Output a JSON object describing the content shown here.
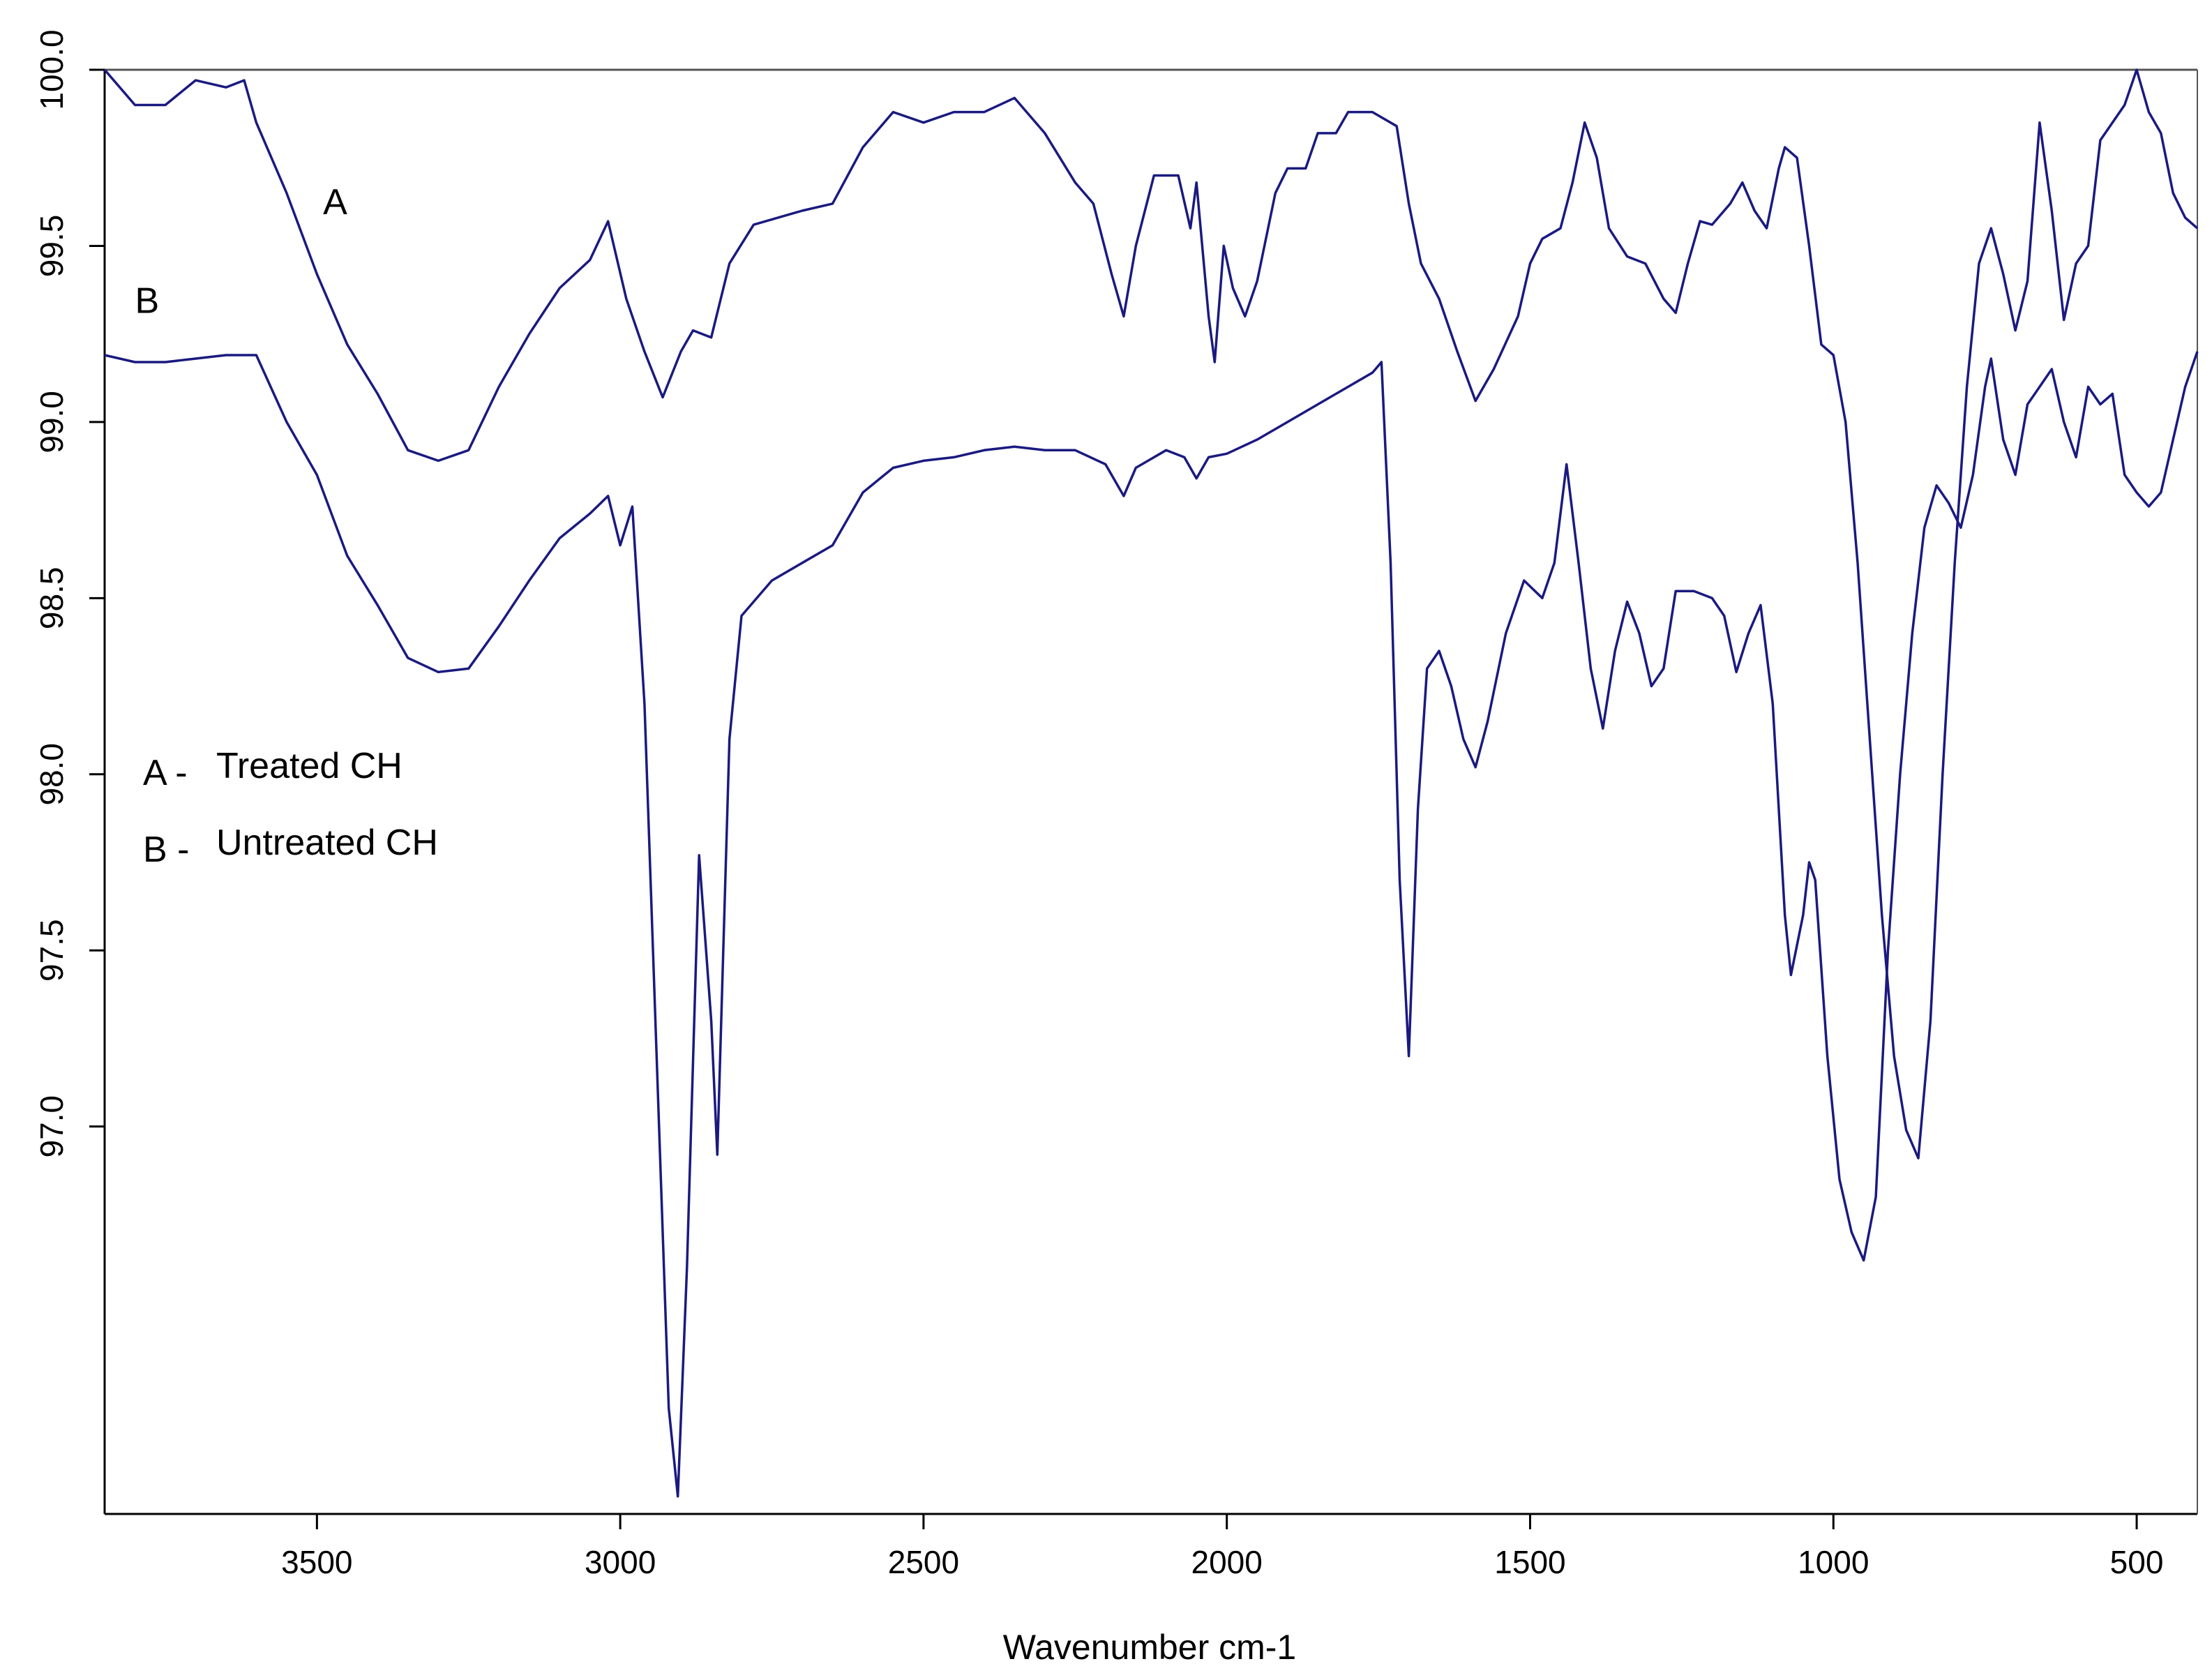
{
  "chart_data": {
    "type": "line",
    "xlabel": "Wavenumber cm-1",
    "ylabel": "",
    "xlim": [
      3850,
      400
    ],
    "ylim": [
      95.9,
      100.0
    ],
    "x_ticks": [
      3500,
      3000,
      2500,
      2000,
      1500,
      1000,
      500
    ],
    "y_ticks": [
      100.0,
      99.5,
      99.0,
      98.5,
      98.0,
      97.5,
      97.0
    ],
    "y_tick_labels": [
      "100.0",
      "99.5",
      "99.0",
      "98.5",
      "98.0",
      "97.5",
      "97.0"
    ],
    "top_reference_line": 100.0,
    "line_color": "#1a1a80",
    "annotations": [
      {
        "text": "A",
        "x": 3470,
        "y": 99.59
      },
      {
        "text": "B",
        "x": 3780,
        "y": 99.31
      }
    ],
    "legend": {
      "placement": "left-center",
      "entries": [
        {
          "key": "A -",
          "label": "Treated CH"
        },
        {
          "key": "B -",
          "label": "Untreated CH"
        }
      ]
    },
    "series": [
      {
        "key": "A",
        "color": "#1a1a80",
        "points": [
          [
            3850,
            100.0
          ],
          [
            3800,
            99.9
          ],
          [
            3750,
            99.9
          ],
          [
            3700,
            99.97
          ],
          [
            3650,
            99.95
          ],
          [
            3620,
            99.97
          ],
          [
            3600,
            99.85
          ],
          [
            3550,
            99.65
          ],
          [
            3500,
            99.42
          ],
          [
            3450,
            99.22
          ],
          [
            3400,
            99.08
          ],
          [
            3350,
            98.92
          ],
          [
            3300,
            98.89
          ],
          [
            3250,
            98.92
          ],
          [
            3200,
            99.1
          ],
          [
            3150,
            99.25
          ],
          [
            3100,
            99.38
          ],
          [
            3050,
            99.46
          ],
          [
            3020,
            99.57
          ],
          [
            2990,
            99.35
          ],
          [
            2960,
            99.2
          ],
          [
            2930,
            99.07
          ],
          [
            2900,
            99.2
          ],
          [
            2880,
            99.26
          ],
          [
            2850,
            99.24
          ],
          [
            2820,
            99.45
          ],
          [
            2780,
            99.56
          ],
          [
            2700,
            99.6
          ],
          [
            2650,
            99.62
          ],
          [
            2600,
            99.78
          ],
          [
            2550,
            99.88
          ],
          [
            2500,
            99.85
          ],
          [
            2450,
            99.88
          ],
          [
            2400,
            99.88
          ],
          [
            2350,
            99.92
          ],
          [
            2300,
            99.82
          ],
          [
            2250,
            99.68
          ],
          [
            2220,
            99.62
          ],
          [
            2190,
            99.42
          ],
          [
            2170,
            99.3
          ],
          [
            2150,
            99.5
          ],
          [
            2120,
            99.7
          ],
          [
            2080,
            99.7
          ],
          [
            2060,
            99.55
          ],
          [
            2050,
            99.68
          ],
          [
            2030,
            99.3
          ],
          [
            2020,
            99.17
          ],
          [
            2005,
            99.5
          ],
          [
            1990,
            99.38
          ],
          [
            1970,
            99.3
          ],
          [
            1950,
            99.4
          ],
          [
            1920,
            99.65
          ],
          [
            1900,
            99.72
          ],
          [
            1870,
            99.72
          ],
          [
            1850,
            99.82
          ],
          [
            1820,
            99.82
          ],
          [
            1800,
            99.88
          ],
          [
            1760,
            99.88
          ],
          [
            1720,
            99.84
          ],
          [
            1700,
            99.62
          ],
          [
            1680,
            99.45
          ],
          [
            1650,
            99.35
          ],
          [
            1620,
            99.2
          ],
          [
            1590,
            99.06
          ],
          [
            1560,
            99.15
          ],
          [
            1520,
            99.3
          ],
          [
            1500,
            99.45
          ],
          [
            1480,
            99.52
          ],
          [
            1450,
            99.55
          ],
          [
            1430,
            99.68
          ],
          [
            1410,
            99.85
          ],
          [
            1390,
            99.75
          ],
          [
            1370,
            99.55
          ],
          [
            1340,
            99.47
          ],
          [
            1310,
            99.45
          ],
          [
            1280,
            99.35
          ],
          [
            1260,
            99.31
          ],
          [
            1240,
            99.45
          ],
          [
            1220,
            99.57
          ],
          [
            1200,
            99.56
          ],
          [
            1170,
            99.62
          ],
          [
            1150,
            99.68
          ],
          [
            1130,
            99.6
          ],
          [
            1110,
            99.55
          ],
          [
            1090,
            99.72
          ],
          [
            1080,
            99.78
          ],
          [
            1060,
            99.75
          ],
          [
            1040,
            99.5
          ],
          [
            1020,
            99.22
          ],
          [
            1000,
            99.19
          ],
          [
            980,
            99.0
          ],
          [
            960,
            98.6
          ],
          [
            940,
            98.1
          ],
          [
            920,
            97.6
          ],
          [
            900,
            97.2
          ],
          [
            880,
            96.99
          ],
          [
            860,
            96.91
          ],
          [
            840,
            97.3
          ],
          [
            820,
            98.0
          ],
          [
            800,
            98.6
          ],
          [
            780,
            99.1
          ],
          [
            760,
            99.45
          ],
          [
            740,
            99.55
          ],
          [
            720,
            99.42
          ],
          [
            700,
            99.26
          ],
          [
            680,
            99.4
          ],
          [
            660,
            99.85
          ],
          [
            640,
            99.6
          ],
          [
            620,
            99.29
          ],
          [
            600,
            99.45
          ],
          [
            580,
            99.5
          ],
          [
            560,
            99.8
          ],
          [
            540,
            99.85
          ],
          [
            520,
            99.9
          ],
          [
            500,
            100.0
          ],
          [
            480,
            99.88
          ],
          [
            460,
            99.82
          ],
          [
            440,
            99.65
          ],
          [
            420,
            99.58
          ],
          [
            400,
            99.55
          ]
        ]
      },
      {
        "key": "B",
        "color": "#1a1a80",
        "points": [
          [
            3850,
            99.19
          ],
          [
            3800,
            99.17
          ],
          [
            3750,
            99.17
          ],
          [
            3700,
            99.18
          ],
          [
            3650,
            99.19
          ],
          [
            3600,
            99.19
          ],
          [
            3550,
            99.0
          ],
          [
            3500,
            98.85
          ],
          [
            3450,
            98.62
          ],
          [
            3400,
            98.48
          ],
          [
            3350,
            98.33
          ],
          [
            3300,
            98.29
          ],
          [
            3250,
            98.3
          ],
          [
            3200,
            98.42
          ],
          [
            3150,
            98.55
          ],
          [
            3100,
            98.67
          ],
          [
            3050,
            98.74
          ],
          [
            3020,
            98.79
          ],
          [
            3000,
            98.65
          ],
          [
            2980,
            98.76
          ],
          [
            2960,
            98.2
          ],
          [
            2940,
            97.2
          ],
          [
            2920,
            96.2
          ],
          [
            2905,
            95.95
          ],
          [
            2890,
            96.6
          ],
          [
            2870,
            97.77
          ],
          [
            2850,
            97.3
          ],
          [
            2840,
            96.92
          ],
          [
            2820,
            98.1
          ],
          [
            2800,
            98.45
          ],
          [
            2750,
            98.55
          ],
          [
            2700,
            98.6
          ],
          [
            2650,
            98.65
          ],
          [
            2600,
            98.8
          ],
          [
            2550,
            98.87
          ],
          [
            2500,
            98.89
          ],
          [
            2450,
            98.9
          ],
          [
            2400,
            98.92
          ],
          [
            2350,
            98.93
          ],
          [
            2300,
            98.92
          ],
          [
            2250,
            98.92
          ],
          [
            2200,
            98.88
          ],
          [
            2170,
            98.79
          ],
          [
            2150,
            98.87
          ],
          [
            2100,
            98.92
          ],
          [
            2070,
            98.9
          ],
          [
            2050,
            98.84
          ],
          [
            2030,
            98.9
          ],
          [
            2000,
            98.91
          ],
          [
            1950,
            98.95
          ],
          [
            1900,
            99.0
          ],
          [
            1850,
            99.05
          ],
          [
            1800,
            99.1
          ],
          [
            1760,
            99.14
          ],
          [
            1745,
            99.17
          ],
          [
            1730,
            98.6
          ],
          [
            1715,
            97.7
          ],
          [
            1700,
            97.2
          ],
          [
            1685,
            97.9
          ],
          [
            1670,
            98.3
          ],
          [
            1650,
            98.35
          ],
          [
            1630,
            98.25
          ],
          [
            1610,
            98.1
          ],
          [
            1590,
            98.02
          ],
          [
            1570,
            98.15
          ],
          [
            1540,
            98.4
          ],
          [
            1510,
            98.55
          ],
          [
            1480,
            98.5
          ],
          [
            1460,
            98.6
          ],
          [
            1440,
            98.88
          ],
          [
            1420,
            98.6
          ],
          [
            1400,
            98.3
          ],
          [
            1380,
            98.13
          ],
          [
            1360,
            98.35
          ],
          [
            1340,
            98.49
          ],
          [
            1320,
            98.4
          ],
          [
            1300,
            98.25
          ],
          [
            1280,
            98.3
          ],
          [
            1260,
            98.52
          ],
          [
            1230,
            98.52
          ],
          [
            1200,
            98.5
          ],
          [
            1180,
            98.45
          ],
          [
            1160,
            98.29
          ],
          [
            1140,
            98.4
          ],
          [
            1120,
            98.48
          ],
          [
            1100,
            98.2
          ],
          [
            1080,
            97.6
          ],
          [
            1070,
            97.43
          ],
          [
            1050,
            97.6
          ],
          [
            1040,
            97.75
          ],
          [
            1030,
            97.7
          ],
          [
            1010,
            97.2
          ],
          [
            990,
            96.85
          ],
          [
            970,
            96.7
          ],
          [
            950,
            96.62
          ],
          [
            930,
            96.8
          ],
          [
            910,
            97.5
          ],
          [
            890,
            98.0
          ],
          [
            870,
            98.4
          ],
          [
            850,
            98.7
          ],
          [
            830,
            98.82
          ],
          [
            810,
            98.77
          ],
          [
            790,
            98.7
          ],
          [
            770,
            98.85
          ],
          [
            750,
            99.1
          ],
          [
            740,
            99.18
          ],
          [
            720,
            98.95
          ],
          [
            700,
            98.85
          ],
          [
            680,
            99.05
          ],
          [
            660,
            99.1
          ],
          [
            640,
            99.15
          ],
          [
            620,
            99.0
          ],
          [
            600,
            98.9
          ],
          [
            580,
            99.1
          ],
          [
            560,
            99.05
          ],
          [
            540,
            99.08
          ],
          [
            520,
            98.85
          ],
          [
            500,
            98.8
          ],
          [
            480,
            98.76
          ],
          [
            460,
            98.8
          ],
          [
            440,
            98.95
          ],
          [
            420,
            99.1
          ],
          [
            400,
            99.2
          ]
        ]
      }
    ]
  }
}
